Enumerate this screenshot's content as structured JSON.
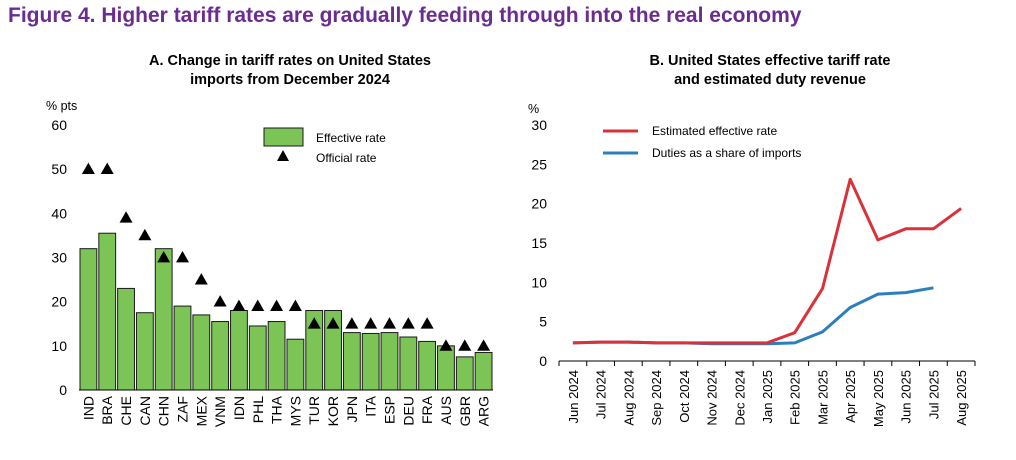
{
  "figure_title": "Figure 4. Higher tariff rates are gradually feeding through into the real economy",
  "colors": {
    "title": "#6b2c91",
    "bar_fill": "#7bc455",
    "bar_stroke": "#1a1a1a",
    "red_line": "#d9323a",
    "blue_line": "#2b7fbe"
  },
  "chart_data": [
    {
      "type": "bar",
      "title": "A. Change in tariff rates on United States imports from December 2024",
      "title_lines": [
        "A. Change in tariff rates on United States",
        "imports from December 2024"
      ],
      "ylabel": "% pts",
      "ylim": [
        0,
        60
      ],
      "yticks": [
        "0",
        "10",
        "20",
        "30",
        "40",
        "50",
        "60"
      ],
      "grid": false,
      "legend_position": "top-center",
      "categories": [
        "IND",
        "BRA",
        "CHE",
        "CAN",
        "CHN",
        "ZAF",
        "MEX",
        "VNM",
        "IDN",
        "PHL",
        "THA",
        "MYS",
        "TUR",
        "KOR",
        "JPN",
        "ITA",
        "ESP",
        "DEU",
        "FRA",
        "AUS",
        "GBR",
        "ARG"
      ],
      "series": [
        {
          "name": "Effective rate",
          "kind": "bar",
          "values": [
            32,
            35.5,
            23,
            17.5,
            32,
            19,
            17,
            15.5,
            18,
            14.5,
            15.5,
            11.5,
            18,
            18,
            13,
            12.8,
            13,
            12,
            11,
            10,
            7.5,
            8.5
          ]
        },
        {
          "name": "Official rate",
          "kind": "marker",
          "values": [
            50,
            50,
            39,
            35,
            30,
            30,
            25,
            20,
            19,
            19,
            19,
            19,
            15,
            15,
            15,
            15,
            15,
            15,
            15,
            10,
            10,
            10
          ]
        }
      ]
    },
    {
      "type": "line",
      "title": "B. United States effective tariff rate and estimated duty revenue",
      "title_lines": [
        "B. United States effective tariff rate",
        "and estimated duty revenue"
      ],
      "ylabel": "%",
      "ylim": [
        0,
        30
      ],
      "yticks": [
        "0",
        "5",
        "10",
        "15",
        "20",
        "25",
        "30"
      ],
      "grid": false,
      "legend_position": "top-left",
      "categories": [
        "Jun 2024",
        "Jul 2024",
        "Aug 2024",
        "Sep 2024",
        "Oct 2024",
        "Nov 2024",
        "Dec 2024",
        "Jan 2025",
        "Feb 2025",
        "Mar 2025",
        "Apr 2025",
        "May 2025",
        "Jun 2025",
        "Jul 2025",
        "Aug 2025"
      ],
      "series": [
        {
          "name": "Estimated effective rate",
          "color": "red",
          "values": [
            2.3,
            2.4,
            2.4,
            2.3,
            2.3,
            2.3,
            2.3,
            2.3,
            3.6,
            9.2,
            23.1,
            15.4,
            16.8,
            16.8,
            19.4
          ]
        },
        {
          "name": "Duties as a share of imports",
          "color": "blue",
          "values": [
            2.3,
            2.4,
            2.4,
            2.3,
            2.3,
            2.2,
            2.2,
            2.2,
            2.3,
            3.7,
            6.8,
            8.5,
            8.7,
            9.3,
            null
          ]
        }
      ]
    }
  ]
}
